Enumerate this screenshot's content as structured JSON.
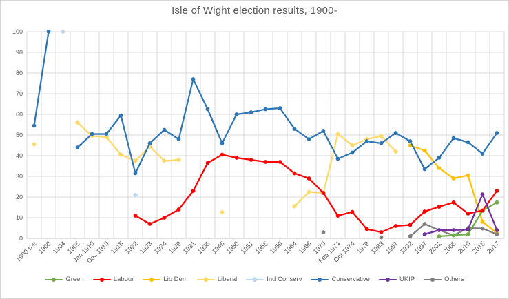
{
  "chart_data": {
    "type": "line",
    "title": "Isle of Wight election results, 1900-",
    "xlabel": "",
    "ylabel": "",
    "ylim": [
      0,
      100
    ],
    "yticks": [
      0,
      10,
      20,
      30,
      40,
      50,
      60,
      70,
      80,
      90,
      100
    ],
    "grid": true,
    "legend_position": "bottom",
    "categories": [
      "1900 b-e",
      "1900",
      "1904",
      "1906",
      "Jan 1910",
      "Dec 1910",
      "1918",
      "1922",
      "1923",
      "1924",
      "1929",
      "1931",
      "1935",
      "1945",
      "1950",
      "1951",
      "1955",
      "1959",
      "1964",
      "1966",
      "1970",
      "Feb 1974",
      "Oct 1974",
      "1979",
      "1983",
      "1987",
      "1992",
      "1997",
      "2001",
      "2005",
      "2010",
      "2015",
      "2017"
    ],
    "series": [
      {
        "name": "Green",
        "color": "#70AD47",
        "marker": "circle",
        "values": [
          null,
          null,
          null,
          null,
          null,
          null,
          null,
          null,
          null,
          null,
          null,
          null,
          null,
          null,
          null,
          null,
          null,
          null,
          null,
          null,
          null,
          null,
          null,
          null,
          null,
          null,
          null,
          null,
          1,
          1.5,
          2,
          13.4,
          17.4
        ]
      },
      {
        "name": "Labour",
        "color": "#FF0000",
        "marker": "circle",
        "values": [
          null,
          null,
          null,
          null,
          null,
          null,
          null,
          11,
          7,
          10,
          14,
          23,
          36.5,
          40.5,
          39,
          38,
          37,
          37,
          31.5,
          29,
          22,
          11,
          12.8,
          4.5,
          3,
          6,
          6.5,
          13,
          15.3,
          17.4,
          12,
          13.5,
          23
        ]
      },
      {
        "name": "Lib Dem",
        "color": "#FFC000",
        "marker": "circle",
        "values": [
          null,
          null,
          null,
          null,
          null,
          null,
          null,
          null,
          null,
          null,
          null,
          null,
          null,
          null,
          null,
          null,
          null,
          null,
          null,
          null,
          null,
          null,
          null,
          null,
          null,
          null,
          45,
          42.5,
          34,
          29,
          30.5,
          8,
          2.6
        ]
      },
      {
        "name": "Liberal",
        "color": "#FFD966",
        "marker": "diamond",
        "values": [
          45.5,
          null,
          null,
          56,
          49.5,
          49,
          40.5,
          37.5,
          44.5,
          37.5,
          38,
          null,
          null,
          12.7,
          null,
          null,
          null,
          null,
          15.5,
          22.5,
          22,
          50.5,
          45,
          48,
          49.5,
          42,
          null,
          null,
          null,
          null,
          null,
          null,
          null
        ]
      },
      {
        "name": "Ind Conserv",
        "color": "#BDD7EE",
        "marker": "diamond",
        "values": [
          null,
          null,
          100,
          null,
          null,
          null,
          null,
          21,
          null,
          null,
          null,
          null,
          null,
          null,
          null,
          null,
          null,
          null,
          null,
          null,
          null,
          null,
          null,
          null,
          null,
          null,
          null,
          null,
          null,
          null,
          null,
          null,
          null
        ]
      },
      {
        "name": "Conservative",
        "color": "#2E75B6",
        "marker": "circle",
        "values": [
          54.5,
          100,
          null,
          44,
          50.5,
          50.5,
          59.5,
          31.5,
          46,
          52.5,
          48,
          77,
          62.5,
          46,
          60,
          61,
          62.5,
          63,
          53,
          48,
          52,
          38.5,
          41.5,
          47,
          46,
          51,
          47,
          33.5,
          39,
          48.5,
          46.5,
          41,
          51
        ]
      },
      {
        "name": "UKIP",
        "color": "#7030A0",
        "marker": "circle",
        "values": [
          null,
          null,
          null,
          null,
          null,
          null,
          null,
          null,
          null,
          null,
          null,
          null,
          null,
          null,
          null,
          null,
          null,
          null,
          null,
          null,
          null,
          null,
          null,
          null,
          null,
          null,
          null,
          2,
          4,
          4,
          4.3,
          21.3,
          4
        ]
      },
      {
        "name": "Others",
        "color": "#7F7F7F",
        "marker": "circle",
        "values": [
          null,
          null,
          null,
          null,
          null,
          null,
          null,
          null,
          null,
          null,
          null,
          null,
          null,
          null,
          null,
          null,
          null,
          null,
          null,
          null,
          3,
          null,
          null,
          null,
          0.5,
          null,
          1,
          7,
          4,
          1.5,
          5,
          4.8,
          2
        ]
      }
    ],
    "draw_order": [
      4,
      3,
      2,
      7,
      0,
      1,
      6,
      5
    ]
  }
}
